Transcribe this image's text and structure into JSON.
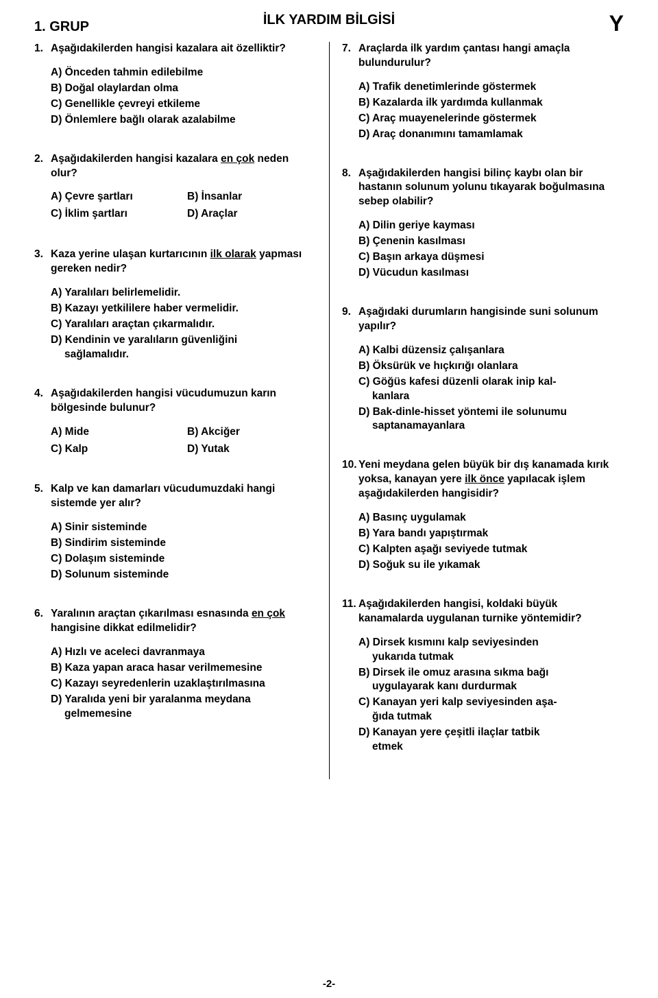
{
  "header": {
    "left": "1. GRUP",
    "center": "İLK YARDIM BİLGİSİ",
    "right": "Y"
  },
  "page_number": "-2-",
  "left_questions": [
    {
      "num": "1.",
      "text": "Aşağıdakilerden hangisi kazalara ait özelliktir?",
      "opts": [
        "A) Önceden tahmin edilebilme",
        "B) Doğal olaylardan olma",
        "C) Genellikle çevreyi etkileme",
        "D) Önlemlere bağlı olarak azalabilme"
      ]
    },
    {
      "num": "2.",
      "text_pre": "Aşağıdakilerden hangisi kazalara ",
      "text_underline": "en çok",
      "text_post": " neden olur?",
      "grid_opts": [
        "A) Çevre şartları",
        "B) İnsanlar",
        "C) İklim şartları",
        "D) Araçlar"
      ]
    },
    {
      "num": "3.",
      "text_pre": "Kaza yerine ulaşan kurtarıcının ",
      "text_underline": "ilk olarak",
      "text_post": " yapması gereken nedir?",
      "opts": [
        "A) Yaralıları belirlemelidir.",
        "B) Kazayı yetkililere haber vermelidir.",
        "C) Yaralıları araçtan çıkarmalıdır."
      ],
      "opt_d_main": "D) Kendinin ve yaralıların güvenliğini",
      "opt_d_sub": "sağlamalıdır."
    },
    {
      "num": "4.",
      "text": "Aşağıdakilerden hangisi vücudumuzun karın bölgesinde bulunur?",
      "grid_opts": [
        "A) Mide",
        "B) Akciğer",
        "C) Kalp",
        "D) Yutak"
      ]
    },
    {
      "num": "5.",
      "text": "Kalp ve kan damarları vücudumuzdaki hangi sistemde yer alır?",
      "opts": [
        "A) Sinir sisteminde",
        "B) Sindirim sisteminde",
        "C) Dolaşım sisteminde",
        "D) Solunum sisteminde"
      ]
    },
    {
      "num": "6.",
      "text_pre": "Yaralının araçtan çıkarılması esnasında ",
      "text_underline": "en çok",
      "text_post": " hangisine dikkat edilmelidir?",
      "opts": [
        "A) Hızlı ve aceleci davranmaya",
        "B) Kaza yapan araca hasar verilmemesine",
        "C) Kazayı seyredenlerin uzaklaştırılmasına"
      ],
      "opt_d_main": "D) Yaralıda yeni bir yaralanma meydana",
      "opt_d_sub": "gelmemesine"
    }
  ],
  "right_questions": [
    {
      "num": "7.",
      "text": "Araçlarda ilk yardım çantası hangi amaçla bulundurulur?",
      "opts": [
        "A) Trafik denetimlerinde göstermek",
        "B) Kazalarda ilk yardımda kullanmak",
        "C) Araç muayenelerinde göstermek",
        "D) Araç donanımını tamamlamak"
      ]
    },
    {
      "num": "8.",
      "text": "Aşağıdakilerden hangisi bilinç kaybı olan bir hastanın solunum yolunu tıkayarak boğulmasına sebep olabilir?",
      "opts": [
        "A) Dilin geriye kayması",
        "B) Çenenin kasılması",
        "C) Başın arkaya düşmesi",
        "D) Vücudun kasılması"
      ]
    },
    {
      "num": "9.",
      "text": "Aşağıdaki durumların hangisinde suni solunum yapılır?",
      "opts": [
        "A) Kalbi düzensiz çalışanlara",
        "B) Öksürük ve hıçkırığı olanlara"
      ],
      "opt_c_main": "C) Göğüs kafesi düzenli olarak inip kal-",
      "opt_c_sub": "kanlara",
      "opt_d_main": "D) Bak-dinle-hisset yöntemi ile solunumu",
      "opt_d_sub": "saptanamayanlara"
    },
    {
      "num": "10.",
      "text_pre": "Yeni meydana gelen büyük bir dış kanamada kırık yoksa, kanayan yere ",
      "text_underline": "ilk önce",
      "text_post": " yapılacak işlem aşağıdakilerden hangisidir?",
      "opts": [
        "A) Basınç uygulamak",
        "B) Yara bandı yapıştırmak",
        "C) Kalpten aşağı seviyede tutmak",
        "D) Soğuk su ile yıkamak"
      ]
    },
    {
      "num": "11.",
      "text": "Aşağıdakilerden hangisi, koldaki büyük kanamalarda uygulanan turnike yöntemidir?",
      "opt_a_main": "A) Dirsek kısmını kalp seviyesinden",
      "opt_a_sub": "yukarıda tutmak",
      "opt_b_main": "B) Dirsek ile omuz arasına sıkma bağı",
      "opt_b_sub": "uygulayarak kanı durdurmak",
      "opt_c_main": "C) Kanayan yeri kalp seviyesinden aşa-",
      "opt_c_sub": "ğıda tutmak",
      "opt_d_main": "D) Kanayan yere çeşitli ilaçlar tatbik",
      "opt_d_sub": "etmek"
    }
  ]
}
